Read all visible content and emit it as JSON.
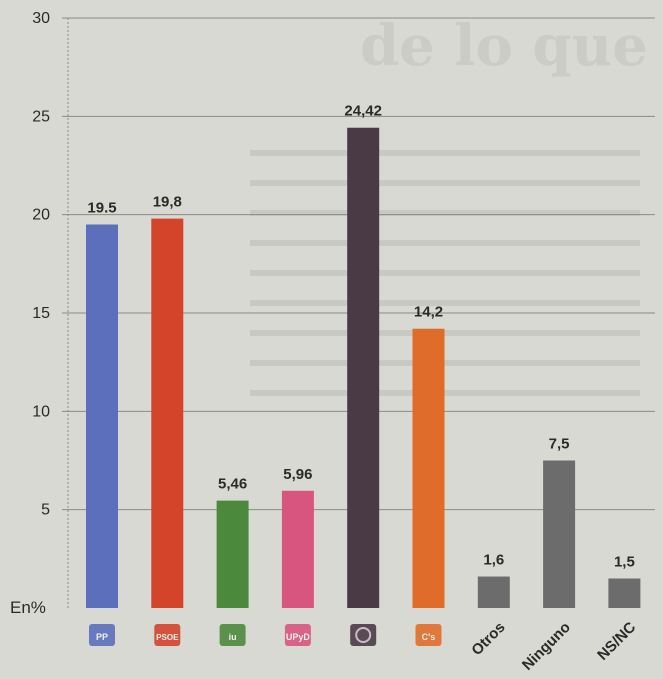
{
  "chart_data": {
    "type": "bar",
    "title": "",
    "xlabel": "",
    "ylabel": "En%",
    "ylim": [
      0,
      30
    ],
    "yticks": [
      5,
      10,
      15,
      20,
      25,
      30
    ],
    "grid": true,
    "categories": [
      "PP",
      "PSOE",
      "IU",
      "UPyD",
      "Podemos",
      "C's",
      "Otros",
      "Ninguno",
      "NS/NC"
    ],
    "category_labels_visible": [
      "PP",
      "PSOE",
      "iu",
      "UPyD",
      "",
      "C's",
      "Otros",
      "Ninguno",
      "NS/NC"
    ],
    "values": [
      19.5,
      19.8,
      5.46,
      5.96,
      24.42,
      14.2,
      1.6,
      7.5,
      1.5
    ],
    "value_labels": [
      "19.5",
      "19,8",
      "5,46",
      "5,96",
      "24,42",
      "14,2",
      "1,6",
      "7,5",
      "1,5"
    ],
    "colors": [
      "#5b6fbd",
      "#d4442b",
      "#4b8a3c",
      "#d8557f",
      "#4a3a45",
      "#e06c2a",
      "#6c6c6c",
      "#6c6c6c",
      "#6c6c6c"
    ],
    "logo_categories": [
      "PP",
      "PSOE",
      "IU",
      "UPyD",
      "Podemos",
      "C's"
    ],
    "text_categories": [
      "Otros",
      "Ninguno",
      "NS/NC"
    ]
  }
}
